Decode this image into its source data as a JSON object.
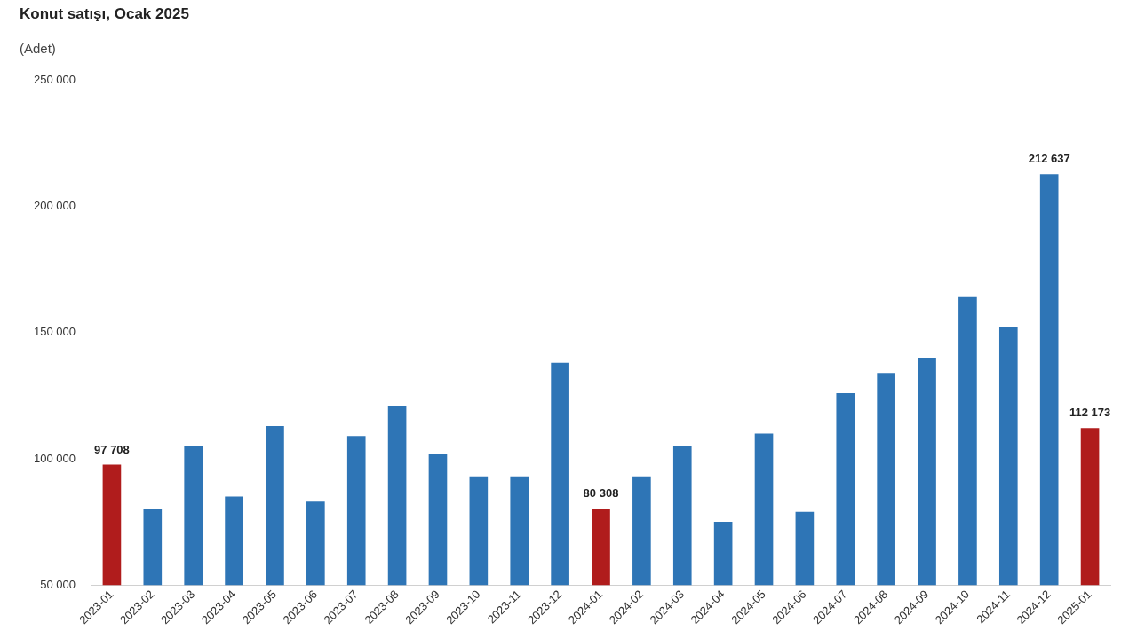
{
  "chart_data": {
    "type": "bar",
    "title": "Konut satışı, Ocak 2025",
    "subtitle": "(Adet)",
    "categories": [
      "2023-01",
      "2023-02",
      "2023-03",
      "2023-04",
      "2023-05",
      "2023-06",
      "2023-07",
      "2023-08",
      "2023-09",
      "2023-10",
      "2023-11",
      "2023-12",
      "2024-01",
      "2024-02",
      "2024-03",
      "2024-04",
      "2024-05",
      "2024-06",
      "2024-07",
      "2024-08",
      "2024-09",
      "2024-10",
      "2024-11",
      "2024-12",
      "2025-01"
    ],
    "values": [
      97708,
      80000,
      105000,
      85000,
      113000,
      83000,
      109000,
      121000,
      102000,
      93000,
      93000,
      138000,
      80308,
      93000,
      105000,
      75000,
      110000,
      79000,
      126000,
      134000,
      140000,
      164000,
      152000,
      212637,
      112173
    ],
    "colors": [
      "#b01c1c",
      "#2e75b6",
      "#2e75b6",
      "#2e75b6",
      "#2e75b6",
      "#2e75b6",
      "#2e75b6",
      "#2e75b6",
      "#2e75b6",
      "#2e75b6",
      "#2e75b6",
      "#2e75b6",
      "#b01c1c",
      "#2e75b6",
      "#2e75b6",
      "#2e75b6",
      "#2e75b6",
      "#2e75b6",
      "#2e75b6",
      "#2e75b6",
      "#2e75b6",
      "#2e75b6",
      "#2e75b6",
      "#2e75b6",
      "#b01c1c"
    ],
    "value_labels": [
      "97 708",
      null,
      null,
      null,
      null,
      null,
      null,
      null,
      null,
      null,
      null,
      null,
      "80 308",
      null,
      null,
      null,
      null,
      null,
      null,
      null,
      null,
      null,
      null,
      "212 637",
      "112 173"
    ],
    "ylim": [
      50000,
      250000
    ],
    "yticks": [
      {
        "value": 50000,
        "label": "50 000"
      },
      {
        "value": 100000,
        "label": "100 000"
      },
      {
        "value": 150000,
        "label": "150 000"
      },
      {
        "value": 200000,
        "label": "200 000"
      },
      {
        "value": 250000,
        "label": "250 000"
      }
    ]
  }
}
